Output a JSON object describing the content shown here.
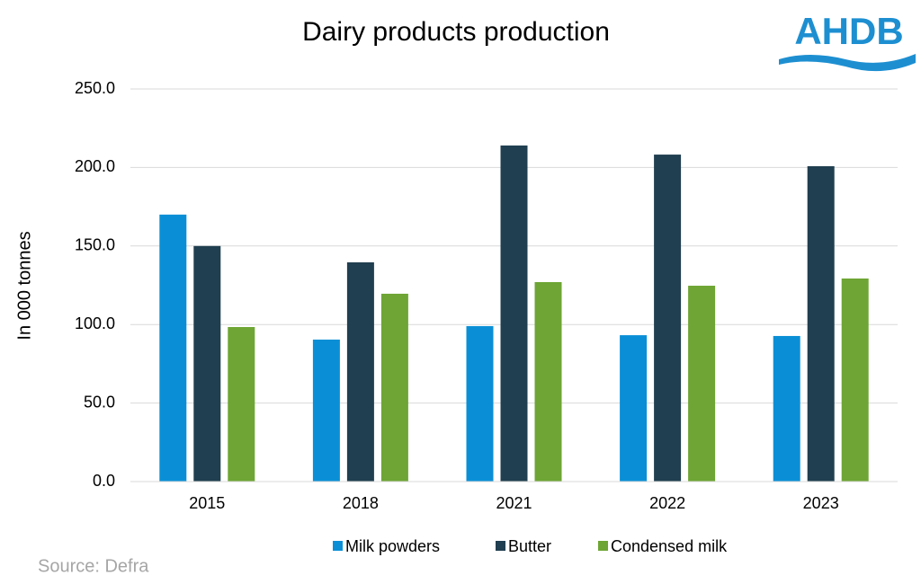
{
  "logo": "AHDB",
  "chart_data": {
    "type": "bar",
    "title": "Dairy products production",
    "y_label": "In 000 tonnes",
    "source": "Source: Defra",
    "categories": [
      "2015",
      "2018",
      "2021",
      "2022",
      "2023"
    ],
    "series": [
      {
        "name": "Milk powders",
        "color": "#0a8fd6",
        "values": [
          170,
          90.4,
          99,
          93.2,
          92.7
        ]
      },
      {
        "name": "Butter",
        "color": "#203f50",
        "values": [
          150,
          139.6,
          214,
          208.2,
          200.8
        ]
      },
      {
        "name": "Condensed milk",
        "color": "#6ea534",
        "values": [
          98.4,
          119.6,
          127,
          124.7,
          129.3
        ]
      }
    ],
    "ylim": [
      0,
      250
    ],
    "yticks": [
      {
        "value": 0,
        "label": "0.0"
      },
      {
        "value": 50,
        "label": "50.0"
      },
      {
        "value": 100,
        "label": "100.0"
      },
      {
        "value": 150,
        "label": "150.0"
      },
      {
        "value": 200,
        "label": "200.0"
      },
      {
        "value": 250,
        "label": "250.0"
      }
    ],
    "grid": true,
    "legend": "bottom"
  }
}
